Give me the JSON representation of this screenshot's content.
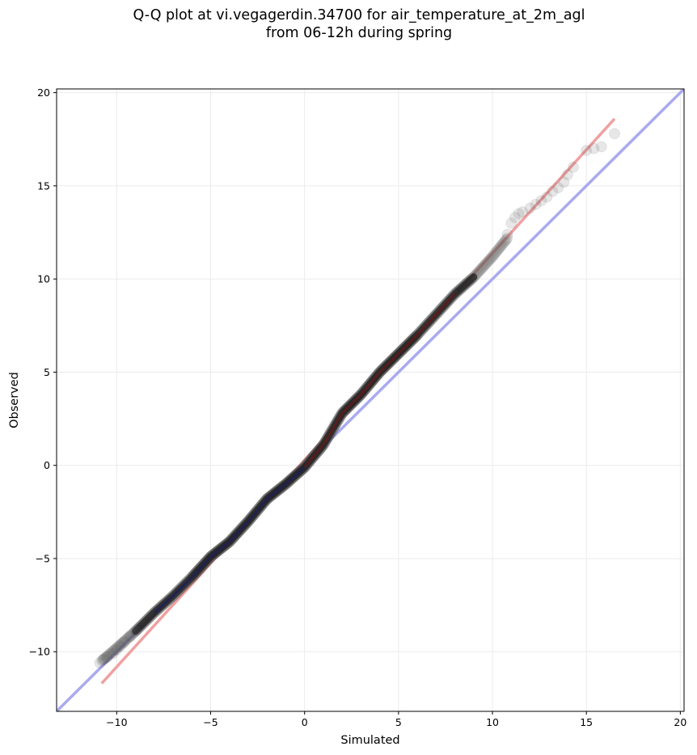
{
  "chart_data": {
    "type": "scatter",
    "title_line1": "Q-Q plot at vi.vegagerdin.34700 for air_temperature_at_2m_agl",
    "title_line2": "from 06-12h during spring",
    "xlabel": "Simulated",
    "ylabel": "Observed",
    "xlim": [
      -13.2,
      20.2
    ],
    "ylim": [
      -13.2,
      20.2
    ],
    "xticks": [
      -10,
      -5,
      0,
      5,
      10,
      15,
      20
    ],
    "yticks": [
      -10,
      -5,
      0,
      5,
      10,
      15,
      20
    ],
    "tick_labels": [
      "−10",
      "−5",
      "0",
      "5",
      "10",
      "15",
      "20"
    ],
    "grid": true,
    "colors": {
      "points": "#555555",
      "identity_line": "#aaaaf0",
      "fit_line": "#f0a0a0",
      "dense_core": "#000000",
      "dense_low": "#1a1a70",
      "dense_high": "#7a1010"
    },
    "identity_line": {
      "x": [
        -13.2,
        20.2
      ],
      "y": [
        -13.2,
        20.2
      ]
    },
    "fit_line": {
      "x": [
        -10.8,
        16.5
      ],
      "y": [
        -11.7,
        18.6
      ]
    },
    "quantile_curve": {
      "x": [
        -10.8,
        -10.0,
        -9.0,
        -8.0,
        -7.0,
        -6.0,
        -5.0,
        -4.0,
        -3.0,
        -2.0,
        -1.0,
        0.0,
        1.0,
        2.0,
        3.0,
        4.0,
        5.0,
        6.0,
        7.0,
        8.0,
        9.0,
        10.0,
        10.8
      ],
      "y": [
        -10.5,
        -9.8,
        -8.9,
        -7.9,
        -7.0,
        -6.0,
        -4.9,
        -4.1,
        -3.0,
        -1.8,
        -1.0,
        -0.1,
        1.1,
        2.8,
        3.8,
        5.0,
        6.0,
        7.0,
        8.1,
        9.2,
        10.1,
        11.2,
        12.2
      ]
    },
    "tail_points_low": {
      "x": [
        -10.9,
        -10.7,
        -10.5,
        -10.2,
        -10.0,
        -9.8,
        -9.6,
        -9.3,
        -9.0
      ],
      "y": [
        -10.6,
        -10.4,
        -10.3,
        -10.1,
        -9.9,
        -9.7,
        -9.5,
        -9.2,
        -8.9
      ]
    },
    "tail_points_high": {
      "x": [
        10.8,
        11.0,
        11.2,
        11.4,
        11.6,
        12.0,
        12.3,
        12.6,
        12.9,
        13.2,
        13.5,
        13.8,
        14.0,
        14.3,
        15.0,
        15.4,
        15.8,
        16.5
      ],
      "y": [
        12.4,
        13.0,
        13.3,
        13.5,
        13.6,
        13.8,
        14.0,
        14.2,
        14.4,
        14.7,
        14.9,
        15.2,
        15.6,
        16.0,
        16.9,
        17.0,
        17.1,
        17.8
      ]
    }
  }
}
